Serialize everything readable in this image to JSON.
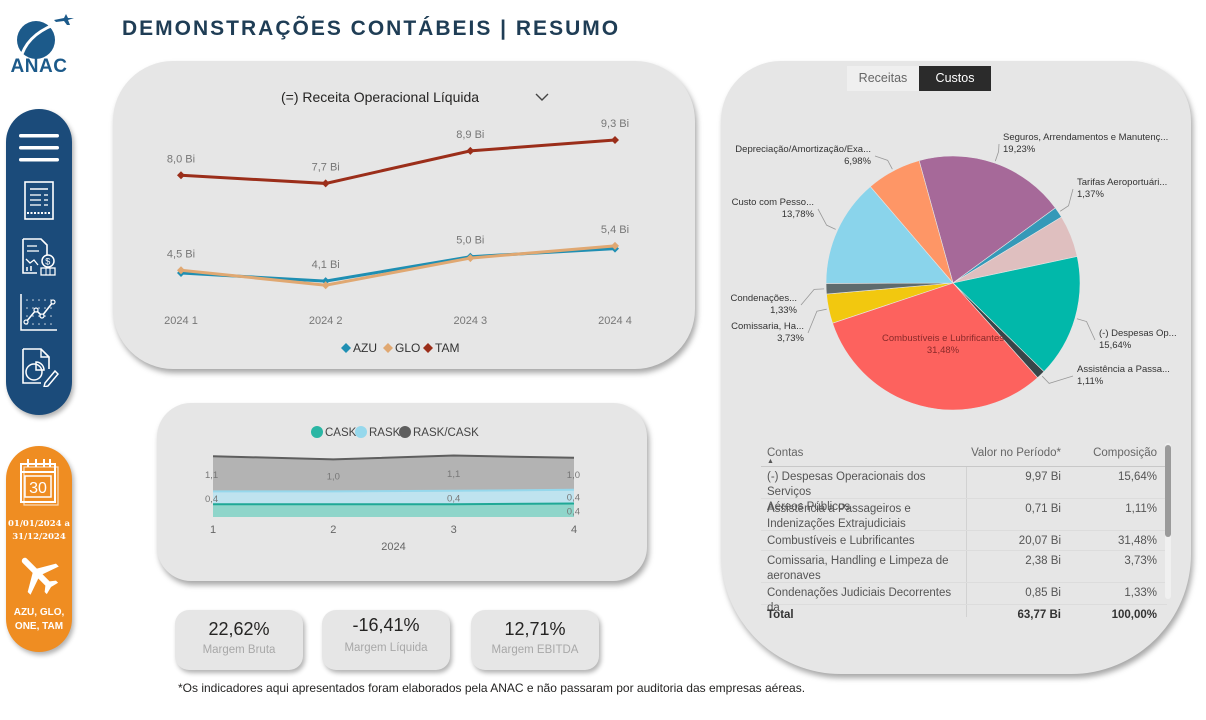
{
  "logo": {
    "text": "ANAC"
  },
  "header": {
    "title": "DEMONSTRAÇÕES CONTÁBEIS  |  RESUMO"
  },
  "nav": {
    "items": [
      {
        "icon": "menu-icon",
        "label": "Menu"
      },
      {
        "icon": "document-report-icon",
        "label": "Demonstrações"
      },
      {
        "icon": "financial-report-icon",
        "label": "Financeiro"
      },
      {
        "icon": "line-chart-icon",
        "label": "Indicadores"
      },
      {
        "icon": "pie-report-icon",
        "label": "Relatório"
      }
    ]
  },
  "filters": {
    "calendar_day": "30",
    "date_range": "01/01/2024 a 31/12/2024",
    "date_line1": "01/01/2024 a",
    "date_line2": "31/12/2024",
    "airlines_line1": "AZU, GLO,",
    "airlines_line2": "ONE, TAM"
  },
  "line_panel": {
    "dropdown_value": "(=) Receita Operacional Líquida"
  },
  "kpis": [
    {
      "value": "22,62%",
      "label": "Margem Bruta"
    },
    {
      "value": "-16,41%",
      "label": "Margem Líquida"
    },
    {
      "value": "12,71%",
      "label": "Margem EBITDA"
    }
  ],
  "footnote": "*Os indicadores aqui apresentados foram elaborados pela ANAC e não passaram por auditoria das empresas aéreas.",
  "right_panel": {
    "tabs": [
      {
        "label": "Receitas",
        "active": false
      },
      {
        "label": "Custos",
        "active": true
      }
    ],
    "table": {
      "headers": [
        "Contas",
        "Valor no Período*",
        "Composição"
      ],
      "rows": [
        {
          "conta_l1": "(-) Despesas Operacionais dos Serviços",
          "conta_l2": "Aéreos Públicos",
          "valor": "9,97 Bi",
          "comp": "15,64%"
        },
        {
          "conta_l1": "Assistência a Passageiros e",
          "conta_l2": "Indenizações Extrajudiciais",
          "valor": "0,71 Bi",
          "comp": "1,11%"
        },
        {
          "conta_l1": "Combustíveis e Lubrificantes",
          "conta_l2": "",
          "valor": "20,07 Bi",
          "comp": "31,48%"
        },
        {
          "conta_l1": "Comissaria, Handling e Limpeza de",
          "conta_l2": "aeronaves",
          "valor": "2,38 Bi",
          "comp": "3,73%"
        },
        {
          "conta_l1": "Condenações Judiciais Decorrentes da",
          "conta_l2": "",
          "valor": "0,85 Bi",
          "comp": "1,33%"
        }
      ],
      "total": {
        "label": "Total",
        "valor": "63,77 Bi",
        "comp": "100,00%"
      }
    }
  },
  "chart_data": [
    {
      "type": "line",
      "title": "(=) Receita Operacional Líquida",
      "categories": [
        "2024 1",
        "2024 2",
        "2024 3",
        "2024 4"
      ],
      "unit": "Bi",
      "ylim": [
        3.0,
        10.0
      ],
      "legend_position": "bottom",
      "series": [
        {
          "name": "AZU",
          "color": "#1f8fb3",
          "values": [
            4.4,
            4.1,
            5.0,
            5.3
          ]
        },
        {
          "name": "GLO",
          "color": "#e0a872",
          "values": [
            4.5,
            3.95,
            4.95,
            5.4
          ]
        },
        {
          "name": "TAM",
          "color": "#9b2e1a",
          "values": [
            8.0,
            7.7,
            8.9,
            9.3
          ]
        }
      ],
      "labels": [
        {
          "series": "TAM",
          "index": 0,
          "text": "8,0 Bi"
        },
        {
          "series": "TAM",
          "index": 1,
          "text": "7,7 Bi"
        },
        {
          "series": "TAM",
          "index": 2,
          "text": "8,9 Bi"
        },
        {
          "series": "TAM",
          "index": 3,
          "text": "9,3 Bi"
        },
        {
          "series": "GLO",
          "index": 0,
          "text": "4,5 Bi"
        },
        {
          "series": "AZU",
          "index": 1,
          "text": "4,1 Bi"
        },
        {
          "series": "AZU",
          "index": 2,
          "text": "5,0 Bi"
        },
        {
          "series": "GLO",
          "index": 3,
          "text": "5,4 Bi"
        }
      ]
    },
    {
      "type": "area",
      "stacked": true,
      "title": "",
      "xlabel": "2024",
      "categories": [
        "1",
        "2",
        "3",
        "4"
      ],
      "legend_position": "top",
      "ylim": [
        0,
        2.0
      ],
      "series": [
        {
          "name": "CASK",
          "color": "#2ab6a4",
          "values": [
            0.4,
            0.4,
            0.4,
            0.42
          ],
          "labels": [
            "",
            "",
            "",
            "0,4"
          ]
        },
        {
          "name": "RASK",
          "color": "#96d8ec",
          "values": [
            0.4,
            0.4,
            0.42,
            0.43
          ],
          "labels": [
            "0,4",
            "",
            "0,4",
            "0,4"
          ]
        },
        {
          "name": "RASK/CASK",
          "color": "#5e5e5e",
          "values": [
            1.1,
            1.0,
            1.1,
            1.0
          ],
          "labels": [
            "1,1",
            "1,0",
            "1,1",
            "1,0"
          ]
        }
      ]
    },
    {
      "type": "pie",
      "title": "Custos",
      "slices": [
        {
          "name": "Seguros, Arrendamentos e Manutenç...",
          "value": 19.23,
          "label": "19,23%",
          "color": "#a66999"
        },
        {
          "name": "Tarifas Aeroportuári...",
          "value": 1.37,
          "label": "1,37%",
          "color": "#3599b8"
        },
        {
          "name": "",
          "value": 5.35,
          "label": "",
          "color": "#dfbfbf"
        },
        {
          "name": "(-) Despesas Op...",
          "value": 15.64,
          "label": "15,64%",
          "color": "#01b8aa"
        },
        {
          "name": "Assistência a Passa...",
          "value": 1.11,
          "label": "1,11%",
          "color": "#374649"
        },
        {
          "name": "Combustíveis e Lubrificantes",
          "value": 31.48,
          "label": "31,48%",
          "color": "#fd625e"
        },
        {
          "name": "Comissaria, Ha...",
          "value": 3.73,
          "label": "3,73%",
          "color": "#f2c80f"
        },
        {
          "name": "Condenações...",
          "value": 1.33,
          "label": "1,33%",
          "color": "#5f6b6d"
        },
        {
          "name": "Custo com Pesso...",
          "value": 13.78,
          "label": "13,78%",
          "color": "#8ad4eb"
        },
        {
          "name": "Depreciação/Amortização/Exa...",
          "value": 6.98,
          "label": "6,98%",
          "color": "#fe9666"
        }
      ]
    }
  ]
}
